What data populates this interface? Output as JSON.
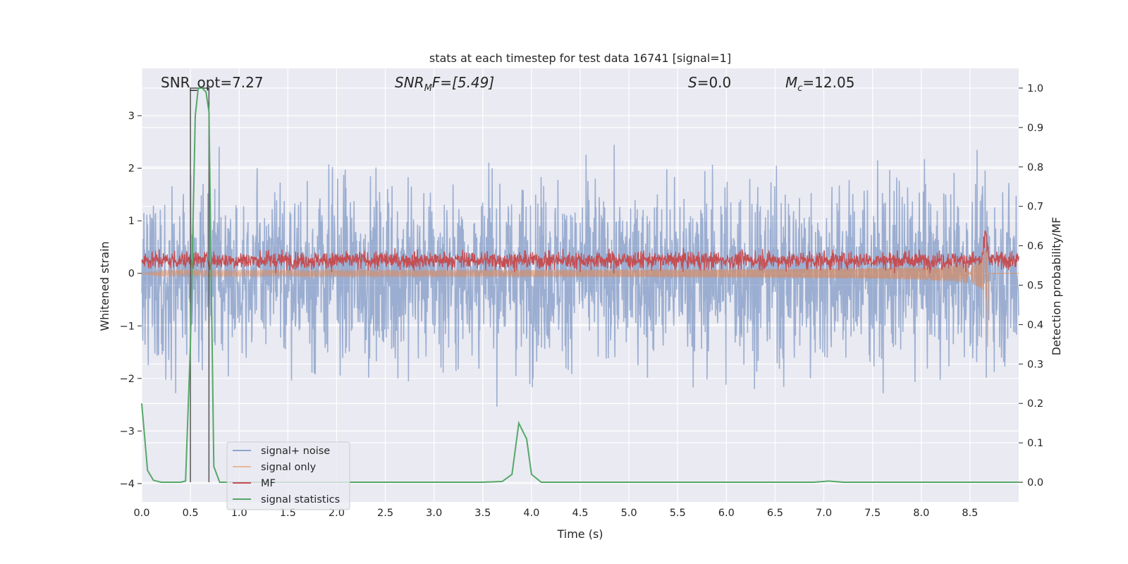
{
  "chart_data": {
    "type": "line",
    "title": "stats at each timestep for test data 16741 [signal=1]",
    "xlabel": "Time (s)",
    "ylabel": "Whitened strain",
    "ylabel_right": "Detection probability/MF",
    "xlim": [
      0.0,
      9.0
    ],
    "ylim": [
      -4.35,
      3.9
    ],
    "ylim_right": [
      -0.05,
      1.05
    ],
    "xticks": [
      "0.0",
      "0.5",
      "1.0",
      "1.5",
      "2.0",
      "2.5",
      "3.0",
      "3.5",
      "4.0",
      "4.5",
      "5.0",
      "5.5",
      "6.0",
      "6.5",
      "7.0",
      "7.5",
      "8.0",
      "8.5"
    ],
    "yticks": [
      "3",
      "2",
      "1",
      "0",
      "−1",
      "−2",
      "−3",
      "−4"
    ],
    "yticks_right": [
      "1.0",
      "0.9",
      "0.8",
      "0.7",
      "0.6",
      "0.5",
      "0.4",
      "0.3",
      "0.2",
      "0.1",
      "0.0"
    ],
    "grid": true,
    "legend_position": "lower-left",
    "annotations": {
      "snr_opt": "SNR_opt=7.27",
      "snr_mf_base": "SNR",
      "snr_mf_sub": "M",
      "snr_mf_rest": "F=[5.49]",
      "s_var": "S",
      "s_rest": "=0.0",
      "mc_var": "M",
      "mc_sub": "c",
      "mc_rest": "=12.05"
    },
    "detection_window": [
      0.5,
      0.69
    ],
    "series": [
      {
        "name": "signal+ noise",
        "color": "#4c72b0",
        "description_values": "noise band approx -2.8 to 3.2 whitened strain"
      },
      {
        "name": "signal only",
        "color": "#dd8452",
        "chirp_peak_time": 8.68,
        "chirp_peak_range": [
          -1.4,
          0.95
        ]
      },
      {
        "name": "MF",
        "color": "#c44e52",
        "range": [
          0.0,
          0.65
        ]
      },
      {
        "name": "signal statistics",
        "color": "#55a868",
        "x": [
          0.0,
          0.06,
          0.12,
          0.2,
          0.3,
          0.4,
          0.45,
          0.5,
          0.55,
          0.58,
          0.62,
          0.66,
          0.69,
          0.74,
          0.8,
          0.9,
          1.5,
          2.5,
          3.5,
          3.7,
          3.8,
          3.87,
          3.95,
          4.0,
          4.1,
          4.5,
          5.5,
          6.5,
          6.9,
          7.05,
          7.2,
          8.0,
          9.0
        ],
        "y": [
          0.2,
          0.03,
          0.005,
          0.0,
          0.0,
          0.0,
          0.003,
          0.35,
          0.93,
          1.0,
          1.0,
          0.99,
          0.94,
          0.04,
          0.0,
          0.0,
          0.0,
          0.0,
          0.0,
          0.002,
          0.02,
          0.15,
          0.11,
          0.02,
          0.0,
          0.0,
          0.0,
          0.0,
          0.0,
          0.003,
          0.0,
          0.0,
          0.0
        ]
      }
    ]
  },
  "legend": [
    {
      "label": "signal+ noise",
      "color": "#8fa6cd"
    },
    {
      "label": "signal only",
      "color": "#eab89a"
    },
    {
      "label": "MF",
      "color": "#c44e52"
    },
    {
      "label": "signal statistics",
      "color": "#55a868"
    }
  ]
}
